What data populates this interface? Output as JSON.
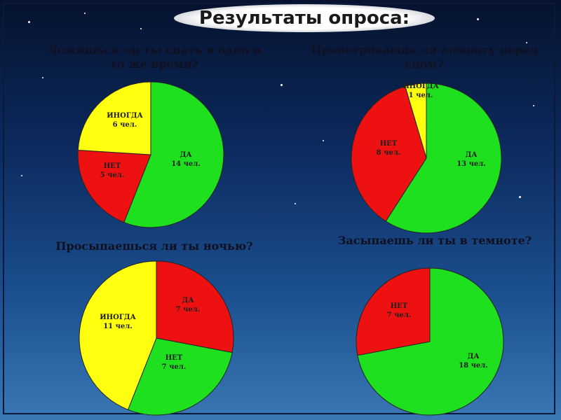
{
  "page_title": "Результаты опроса:",
  "colors": {
    "yes": "#1fe01f",
    "no": "#ee1111",
    "sometimes": "#ffff10"
  },
  "chart_data": [
    {
      "type": "pie",
      "title": "Ложишься ли ты спать в одно и то же время?",
      "slices": [
        {
          "label": "ДА",
          "value_text": "14 чел.",
          "value": 14,
          "color": "#1fe01f"
        },
        {
          "label": "НЕТ",
          "value_text": "5 чел.",
          "value": 5,
          "color": "#ee1111"
        },
        {
          "label": "ИНОГДА",
          "value_text": "6 чел.",
          "value": 6,
          "color": "#ffff10"
        }
      ]
    },
    {
      "type": "pie",
      "title": "Проветриваешь ли комнату перед сном?",
      "slices": [
        {
          "label": "ДА",
          "value_text": "13 чел.",
          "value": 13,
          "color": "#1fe01f"
        },
        {
          "label": "НЕТ",
          "value_text": "8 чел.",
          "value": 8,
          "color": "#ee1111"
        },
        {
          "label": "ИНОГДА",
          "value_text": "1 чел.",
          "value": 1,
          "color": "#ffff10"
        }
      ]
    },
    {
      "type": "pie",
      "title": "Просыпаешься ли ты ночью?",
      "slices": [
        {
          "label": "ДА",
          "value_text": "7 чел.",
          "value": 7,
          "color": "#ee1111"
        },
        {
          "label": "НЕТ",
          "value_text": "7 чел.",
          "value": 7,
          "color": "#1fe01f"
        },
        {
          "label": "ИНОГДА",
          "value_text": "11 чел.",
          "value": 11,
          "color": "#ffff10"
        }
      ]
    },
    {
      "type": "pie",
      "title": "Засыпаешь ли ты в темноте?",
      "slices": [
        {
          "label": "ДА",
          "value_text": "18 чел.",
          "value": 18,
          "color": "#1fe01f"
        },
        {
          "label": "НЕТ",
          "value_text": "7 чел.",
          "value": 7,
          "color": "#ee1111"
        }
      ]
    }
  ]
}
